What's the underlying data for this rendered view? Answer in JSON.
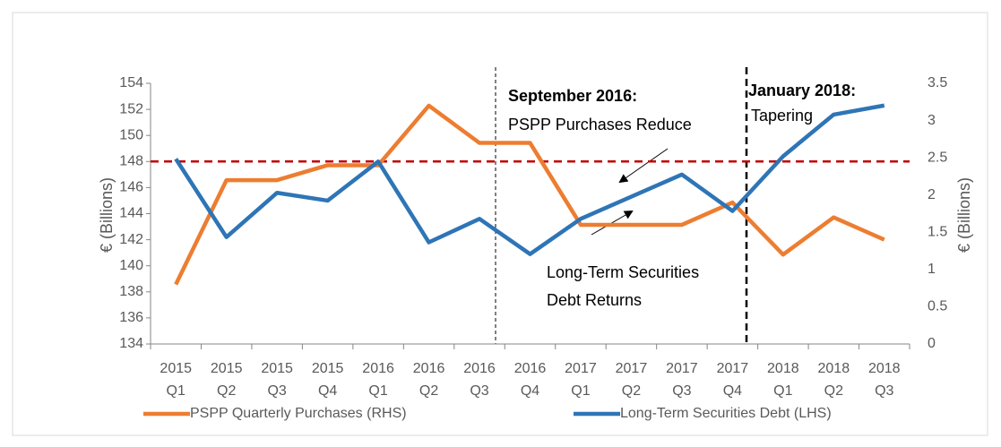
{
  "chart_data": {
    "type": "line",
    "categories": [
      "2015 Q1",
      "2015 Q2",
      "2015 Q3",
      "2015 Q4",
      "2016 Q1",
      "2016 Q2",
      "2016 Q3",
      "2016 Q4",
      "2017 Q1",
      "2017 Q2",
      "2017 Q3",
      "2017 Q4",
      "2018 Q1",
      "2018 Q2",
      "2018 Q3"
    ],
    "series": [
      {
        "name": "PSPP Quarterly Purchases (RHS)",
        "color": "#ed7d31",
        "axis": "y2",
        "values": [
          0.8,
          2.2,
          2.2,
          2.4,
          2.4,
          3.2,
          2.7,
          2.7,
          1.6,
          1.6,
          1.6,
          1.9,
          1.2,
          1.7,
          1.4
        ]
      },
      {
        "name": "Long-Term Securities Debt (LHS)",
        "color": "#2e75b6",
        "values": [
          148.2,
          142.2,
          145.6,
          145.0,
          148.0,
          141.8,
          143.6,
          140.9,
          143.6,
          145.3,
          147.0,
          144.2,
          148.4,
          151.6,
          152.3
        ]
      }
    ],
    "ylabel": "€ (Billions)",
    "y2label": "€ (Billions)",
    "ylim": [
      134,
      154
    ],
    "yticks": [
      134,
      136,
      138,
      140,
      142,
      144,
      146,
      148,
      150,
      152,
      154
    ],
    "y2lim": [
      0,
      3.5
    ],
    "y2ticks": [
      0,
      0.5,
      1,
      1.5,
      2,
      2.5,
      3,
      3.5
    ],
    "hline": {
      "value": 148,
      "color": "#c00000"
    },
    "annotations": [
      {
        "title": "September 2016:",
        "text": "PSPP Purchases Reduce"
      },
      {
        "title": "January 2018:",
        "text": "Tapering"
      },
      {
        "text": "Long-Term Securities"
      },
      {
        "text": "Debt Returns"
      }
    ],
    "legend": "bottom"
  }
}
